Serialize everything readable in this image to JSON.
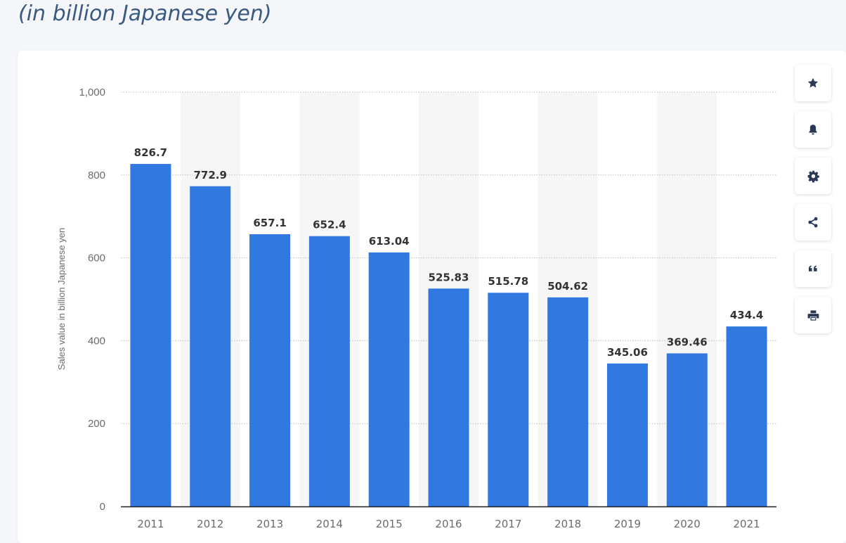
{
  "heading": "(in billion Japanese yen)",
  "toolbar": {
    "icons": [
      "star-icon",
      "bell-icon",
      "gear-icon",
      "share-icon",
      "quote-icon",
      "print-icon"
    ]
  },
  "colors": {
    "bar": "#3178e0",
    "band": "#f6f6f6",
    "axis_text": "#6b6b6b",
    "label_text": "#333333",
    "icon": "#2a3a55",
    "heading": "#3a5a82"
  },
  "chart_data": {
    "type": "bar",
    "title": "",
    "xlabel": "",
    "ylabel": "Sales value in billion Japanese yen",
    "categories": [
      "2011",
      "2012",
      "2013",
      "2014",
      "2015",
      "2016",
      "2017",
      "2018",
      "2019",
      "2020",
      "2021"
    ],
    "values": [
      826.7,
      772.9,
      657.1,
      652.4,
      613.04,
      525.83,
      515.78,
      504.62,
      345.06,
      369.46,
      434.4
    ],
    "value_labels": [
      "826.7",
      "772.9",
      "657.1",
      "652.4",
      "613.04",
      "525.83",
      "515.78",
      "504.62",
      "345.06",
      "369.46",
      "434.4"
    ],
    "ylim": [
      0,
      1000
    ],
    "yticks": [
      0,
      200,
      400,
      600,
      800,
      1000
    ],
    "ytick_labels": [
      "0",
      "200",
      "400",
      "600",
      "800",
      "1,000"
    ],
    "grid": true,
    "legend": "none"
  }
}
